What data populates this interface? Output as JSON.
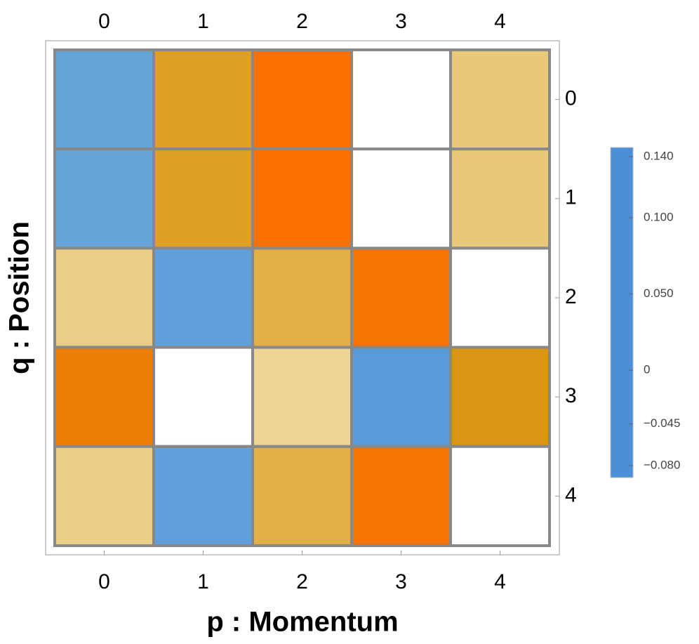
{
  "chart_data": {
    "type": "heatmap",
    "xlabel": "p : Momentum",
    "ylabel": "q : Position",
    "x": [
      0,
      1,
      2,
      3,
      4
    ],
    "y": [
      0,
      1,
      2,
      3,
      4
    ],
    "xticks": [
      0,
      1,
      2,
      3,
      4
    ],
    "yticks": [
      0,
      1,
      2,
      3,
      4
    ],
    "z": [
      [
        -0.07,
        0.09,
        0.14,
        0,
        0.05
      ],
      [
        -0.07,
        0.09,
        0.14,
        0,
        0.05
      ],
      [
        0.045,
        -0.075,
        0.075,
        0.135,
        0
      ],
      [
        0.125,
        0,
        0.04,
        -0.08,
        0.1
      ],
      [
        0.045,
        -0.075,
        0.075,
        0.135,
        0
      ]
    ],
    "clim": [
      -0.09,
      0.146
    ],
    "colorscale": [
      [
        -0.09,
        "#4a8fd8"
      ],
      [
        -0.045,
        "#8cbfdb"
      ],
      [
        0,
        "#ffffff"
      ],
      [
        0.05,
        "#e8c97a"
      ],
      [
        0.1,
        "#dc9512"
      ],
      [
        0.146,
        "#ff6a00"
      ]
    ],
    "cticks": [
      {
        "value": -0.08,
        "label": "−0.080"
      },
      {
        "value": -0.045,
        "label": "−0.045"
      },
      0,
      {
        "value": 0.05,
        "label": "0.050"
      },
      {
        "value": 0.1,
        "label": "0.100"
      },
      {
        "value": 0.14,
        "label": "0.140"
      }
    ]
  }
}
